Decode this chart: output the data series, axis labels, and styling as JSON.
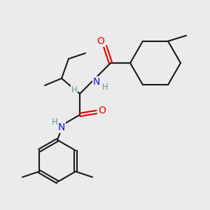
{
  "bg_color": "#ebebeb",
  "line_color": "#1a1a1a",
  "bond_width": 1.5,
  "atom_colors": {
    "N": "#1414e6",
    "O": "#e60000",
    "C": "#1a1a1a",
    "H": "#5a9a9a"
  },
  "font_size_atoms": 10,
  "font_size_h": 8.5
}
